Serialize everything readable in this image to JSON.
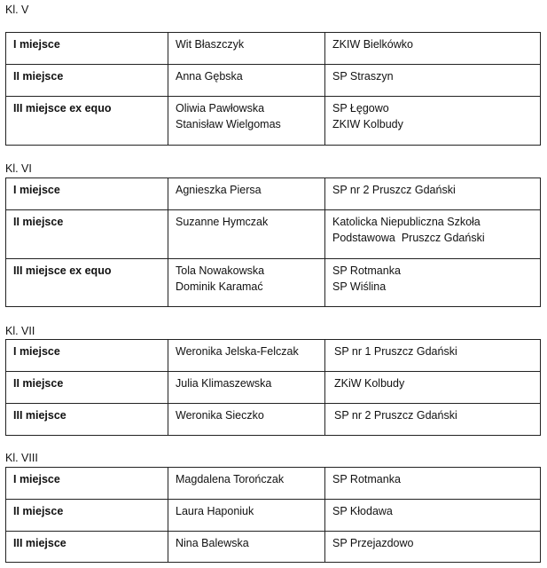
{
  "sections": [
    {
      "label": "Kl. V",
      "rows": [
        {
          "place": "I miejsce",
          "names": [
            "Wit Błaszczyk"
          ],
          "schools": [
            "ZKIW Bielkówko"
          ]
        },
        {
          "place": "II miejsce",
          "names": [
            "Anna Gębska"
          ],
          "schools": [
            "SP Straszyn"
          ]
        },
        {
          "place": "III miejsce  ex equo",
          "names": [
            "Oliwia Pawłowska",
            "Stanisław Wielgomas"
          ],
          "schools": [
            "SP Łęgowo",
            "ZKIW Kolbudy"
          ]
        }
      ]
    },
    {
      "label": "Kl. VI",
      "rows": [
        {
          "place": "I miejsce",
          "names": [
            "Agnieszka Piersa"
          ],
          "schools": [
            "SP nr 2 Pruszcz Gdański"
          ]
        },
        {
          "place": "II miejsce",
          "names": [
            "Suzanne Hymczak"
          ],
          "schools": [
            "Katolicka Niepubliczna Szkoła",
            "Podstawowa  Pruszcz Gdański"
          ]
        },
        {
          "place": "III miejsce  ex equo",
          "names": [
            "Tola Nowakowska",
            "Dominik Karamać"
          ],
          "schools": [
            "SP Rotmanka",
            "SP Wiślina"
          ]
        }
      ]
    },
    {
      "label": "Kl. VII",
      "rows": [
        {
          "place": "I miejsce",
          "names": [
            "Weronika Jelska-Felczak"
          ],
          "schools": [
            "SP nr 1 Pruszcz Gdański"
          ]
        },
        {
          "place": "II miejsce",
          "names": [
            "Julia Klimaszewska"
          ],
          "schools": [
            "ZKiW Kolbudy"
          ]
        },
        {
          "place": "III miejsce",
          "names": [
            "Weronika Sieczko"
          ],
          "schools": [
            "SP nr 2 Pruszcz Gdański"
          ]
        }
      ]
    },
    {
      "label": "Kl. VIII",
      "rows": [
        {
          "place": "I miejsce",
          "names": [
            "Magdalena Torończak"
          ],
          "schools": [
            "SP Rotmanka"
          ]
        },
        {
          "place": "II miejsce",
          "names": [
            "Laura Haponiuk"
          ],
          "schools": [
            "SP Kłodawa"
          ]
        },
        {
          "place": "III miejsce",
          "names": [
            "Nina Balewska"
          ],
          "schools": [
            "SP Przejazdowo"
          ]
        }
      ]
    }
  ]
}
